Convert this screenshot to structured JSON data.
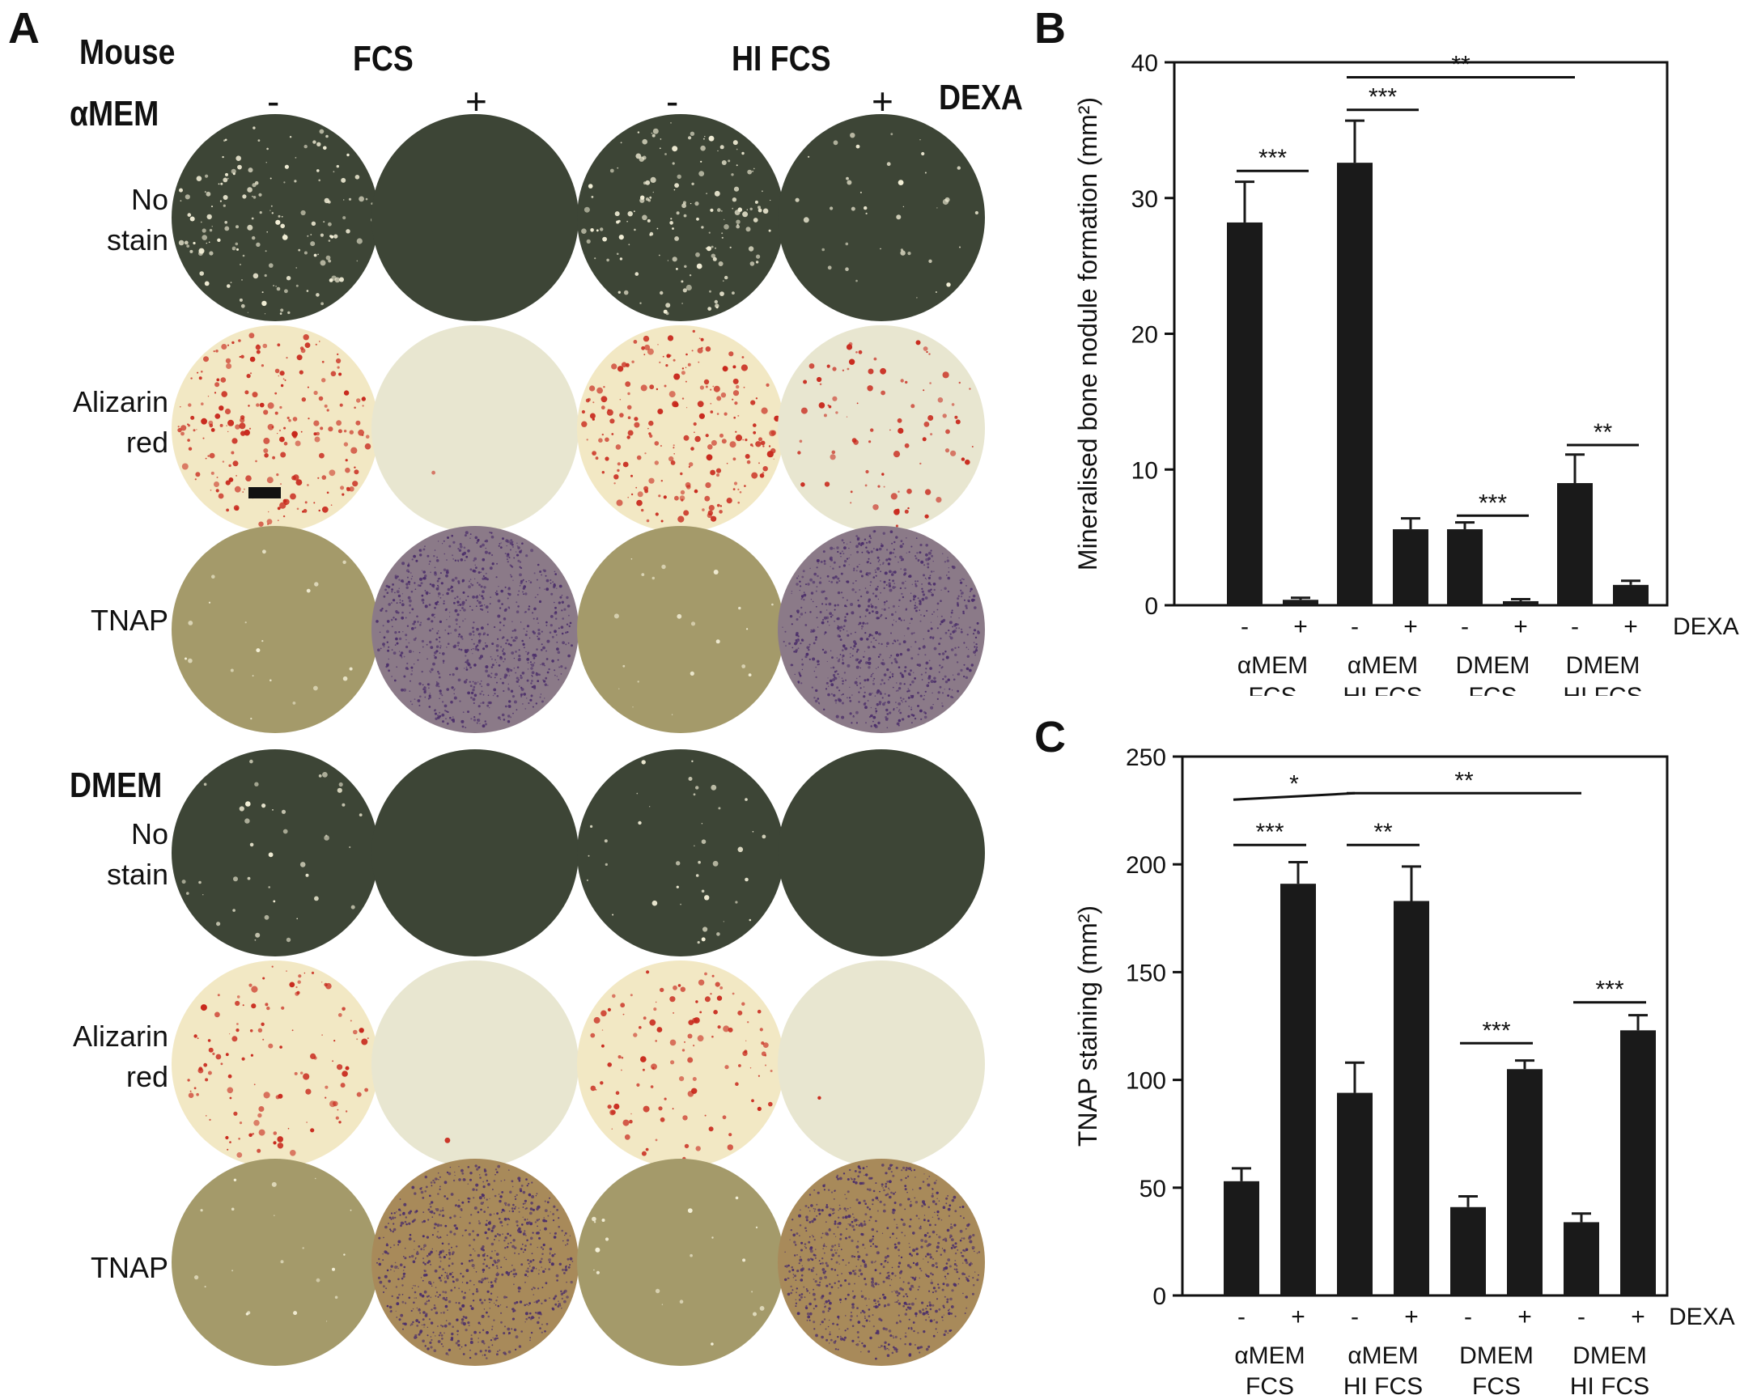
{
  "panel_a": {
    "letter": "A",
    "species": "Mouse",
    "serum_headers": [
      "FCS",
      "HI FCS"
    ],
    "dexa_signs": [
      "-",
      "+",
      "-",
      "+"
    ],
    "dexa_label": "DEXA",
    "media_blocks": [
      {
        "medium": "αMEM",
        "rows": [
          {
            "label_lines": [
              "No",
              "stain"
            ],
            "stain": "none"
          },
          {
            "label_lines": [
              "Alizarin",
              "red"
            ],
            "stain": "alizarin"
          },
          {
            "label_lines": [
              "TNAP"
            ],
            "stain": "tnap"
          }
        ]
      },
      {
        "medium": "DMEM",
        "rows": [
          {
            "label_lines": [
              "No",
              "stain"
            ],
            "stain": "none"
          },
          {
            "label_lines": [
              "Alizarin",
              "red"
            ],
            "stain": "alizarin"
          },
          {
            "label_lines": [
              "TNAP"
            ],
            "stain": "tnap"
          }
        ]
      }
    ],
    "colors": {
      "nostain_bg": "#3d4536",
      "alizarin_bg": "#f2e8c4",
      "alizarin_dexa_bg": "#e8e6d0",
      "alizarin_spot": "#c8281c",
      "tnap_bg": "#a49a6a",
      "tnap_dexa_amem_bg": "#8b7a88",
      "tnap_dexa_dmem_bg": "#a88a5a",
      "tnap_spot": "#4b2e6a",
      "nodule": "#f4f0d8"
    }
  },
  "chart_data": [
    {
      "panel": "B",
      "type": "bar",
      "ylabel": "Mineralised bone nodule formation (mm²)",
      "ylim": [
        0,
        40
      ],
      "yticks": [
        0,
        10,
        20,
        30,
        40
      ],
      "dexa_label": "DEXA",
      "groups": [
        {
          "label_lines": [
            "αMEM",
            "FCS"
          ],
          "signs": [
            "-",
            "+"
          ],
          "values": [
            28.2,
            0.4
          ],
          "errors": [
            3.0,
            0.15
          ]
        },
        {
          "label_lines": [
            "αMEM",
            "HI FCS"
          ],
          "signs": [
            "-",
            "+"
          ],
          "values": [
            32.6,
            5.6
          ],
          "errors": [
            3.1,
            0.8
          ]
        },
        {
          "label_lines": [
            "DMEM",
            "FCS"
          ],
          "signs": [
            "-",
            "+"
          ],
          "values": [
            5.6,
            0.3
          ],
          "errors": [
            0.5,
            0.15
          ]
        },
        {
          "label_lines": [
            "DMEM",
            "HI FCS"
          ],
          "signs": [
            "-",
            "+"
          ],
          "values": [
            9.0,
            1.5
          ],
          "errors": [
            2.1,
            0.3
          ]
        }
      ],
      "significance": [
        {
          "from": [
            0,
            0
          ],
          "to": [
            0,
            1
          ],
          "y": 32,
          "label": "***"
        },
        {
          "from": [
            1,
            0
          ],
          "to": [
            1,
            1
          ],
          "y": 36.5,
          "label": "***"
        },
        {
          "from": [
            1,
            0
          ],
          "to": [
            3,
            0
          ],
          "y": 38.9,
          "label": "**"
        },
        {
          "from": [
            2,
            0
          ],
          "to": [
            2,
            1
          ],
          "y": 6.6,
          "label": "***"
        },
        {
          "from": [
            3,
            0
          ],
          "to": [
            3,
            1
          ],
          "y": 11.8,
          "label": "**"
        }
      ]
    },
    {
      "panel": "C",
      "type": "bar",
      "ylabel": "TNAP staining (mm²)",
      "ylim": [
        0,
        250
      ],
      "yticks": [
        0,
        50,
        100,
        150,
        200,
        250
      ],
      "dexa_label": "DEXA",
      "groups": [
        {
          "label_lines": [
            "αMEM",
            "FCS"
          ],
          "signs": [
            "-",
            "+"
          ],
          "values": [
            53,
            191
          ],
          "errors": [
            6,
            10
          ]
        },
        {
          "label_lines": [
            "αMEM",
            "HI FCS"
          ],
          "signs": [
            "-",
            "+"
          ],
          "values": [
            94,
            183
          ],
          "errors": [
            14,
            16
          ]
        },
        {
          "label_lines": [
            "DMEM",
            "FCS"
          ],
          "signs": [
            "-",
            "+"
          ],
          "values": [
            41,
            105
          ],
          "errors": [
            5,
            4
          ]
        },
        {
          "label_lines": [
            "DMEM",
            "HI FCS"
          ],
          "signs": [
            "-",
            "+"
          ],
          "values": [
            34,
            123
          ],
          "errors": [
            4,
            7
          ]
        }
      ],
      "significance": [
        {
          "from": [
            0,
            0
          ],
          "to": [
            0,
            1
          ],
          "y": 209,
          "label": "***"
        },
        {
          "from": [
            1,
            0
          ],
          "to": [
            1,
            1
          ],
          "y": 209,
          "label": "**"
        },
        {
          "from": [
            2,
            0
          ],
          "to": [
            2,
            1
          ],
          "y": 117,
          "label": "***"
        },
        {
          "from": [
            3,
            0
          ],
          "to": [
            3,
            1
          ],
          "y": 136,
          "label": "***"
        },
        {
          "from": [
            0,
            0
          ],
          "to": [
            1,
            0
          ],
          "y": [
            230,
            233
          ],
          "label": "*"
        },
        {
          "from": [
            1,
            0
          ],
          "to": [
            3,
            0
          ],
          "y": 233,
          "label": "**"
        }
      ]
    }
  ]
}
